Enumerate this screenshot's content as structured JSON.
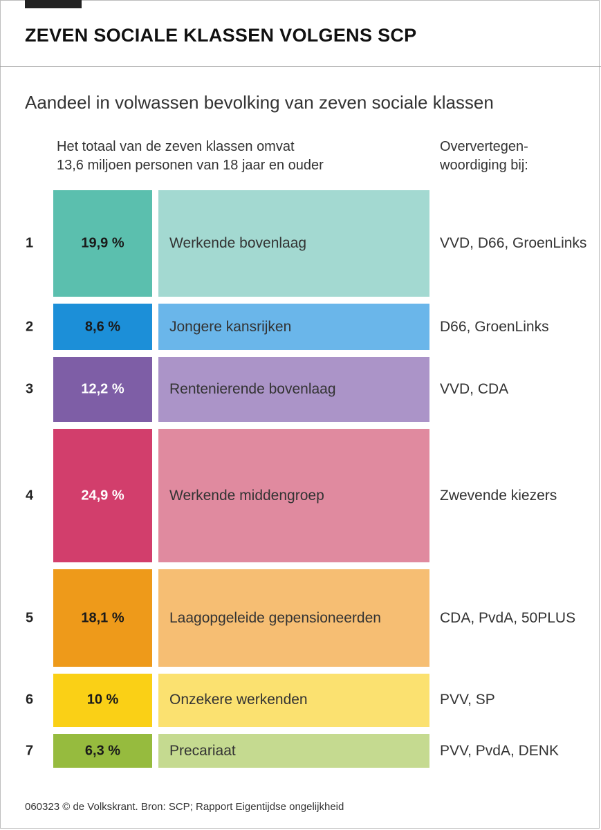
{
  "title": "ZEVEN SOCIALE KLASSEN VOLGENS SCP",
  "subtitle": "Aandeel in volwassen bevolking van zeven sociale klassen",
  "total_note": {
    "line1": "Het totaal van de zeven klassen omvat",
    "line2": "13,6 miljoen personen van 18 jaar en ouder"
  },
  "overrep_header": {
    "line1": "Oververtegen-",
    "line2": "woordiging bij:"
  },
  "footer": "060323 © de Volkskrant. Bron: SCP; Rapport Eigentijdse ongelijkheid",
  "chart_data": {
    "type": "table",
    "unit": "%",
    "rows": [
      {
        "rank": "1",
        "share": 19.9,
        "share_label": "19,9 %",
        "name": "Werkende bovenlaag",
        "parties": "VVD, D66, GroenLinks",
        "color_dark": "#5bbfae",
        "color_light": "#a3d9d1",
        "pct_text_color": "#1a1a1a"
      },
      {
        "rank": "2",
        "share": 8.6,
        "share_label": "8,6 %",
        "name": "Jongere kansrijken",
        "parties": "D66, GroenLinks",
        "color_dark": "#1c8fd8",
        "color_light": "#6ab6ea",
        "pct_text_color": "#1a1a1a"
      },
      {
        "rank": "3",
        "share": 12.2,
        "share_label": "12,2 %",
        "name": "Rentenierende bovenlaag",
        "parties": "VVD, CDA",
        "color_dark": "#7e5ea6",
        "color_light": "#ab94c8",
        "pct_text_color": "#ffffff"
      },
      {
        "rank": "4",
        "share": 24.9,
        "share_label": "24,9 %",
        "name": "Werkende middengroep",
        "parties": "Zwevende kiezers",
        "color_dark": "#d23e6c",
        "color_light": "#e08a9f",
        "pct_text_color": "#ffffff"
      },
      {
        "rank": "5",
        "share": 18.1,
        "share_label": "18,1 %",
        "name": "Laagopgeleide gepensioneerden",
        "parties": "CDA, PvdA, 50PLUS",
        "color_dark": "#ee9a1a",
        "color_light": "#f6be73",
        "pct_text_color": "#1a1a1a"
      },
      {
        "rank": "6",
        "share": 10,
        "share_label": "10 %",
        "name": "Onzekere werkenden",
        "parties": "PVV, SP",
        "color_dark": "#fad016",
        "color_light": "#fbe170",
        "pct_text_color": "#1a1a1a"
      },
      {
        "rank": "7",
        "share": 6.3,
        "share_label": "6,3 %",
        "name": "Precariaat",
        "parties": "PVV, PvdA, DENK",
        "color_dark": "#96bb3e",
        "color_light": "#c5da90",
        "pct_text_color": "#1a1a1a"
      }
    ]
  }
}
